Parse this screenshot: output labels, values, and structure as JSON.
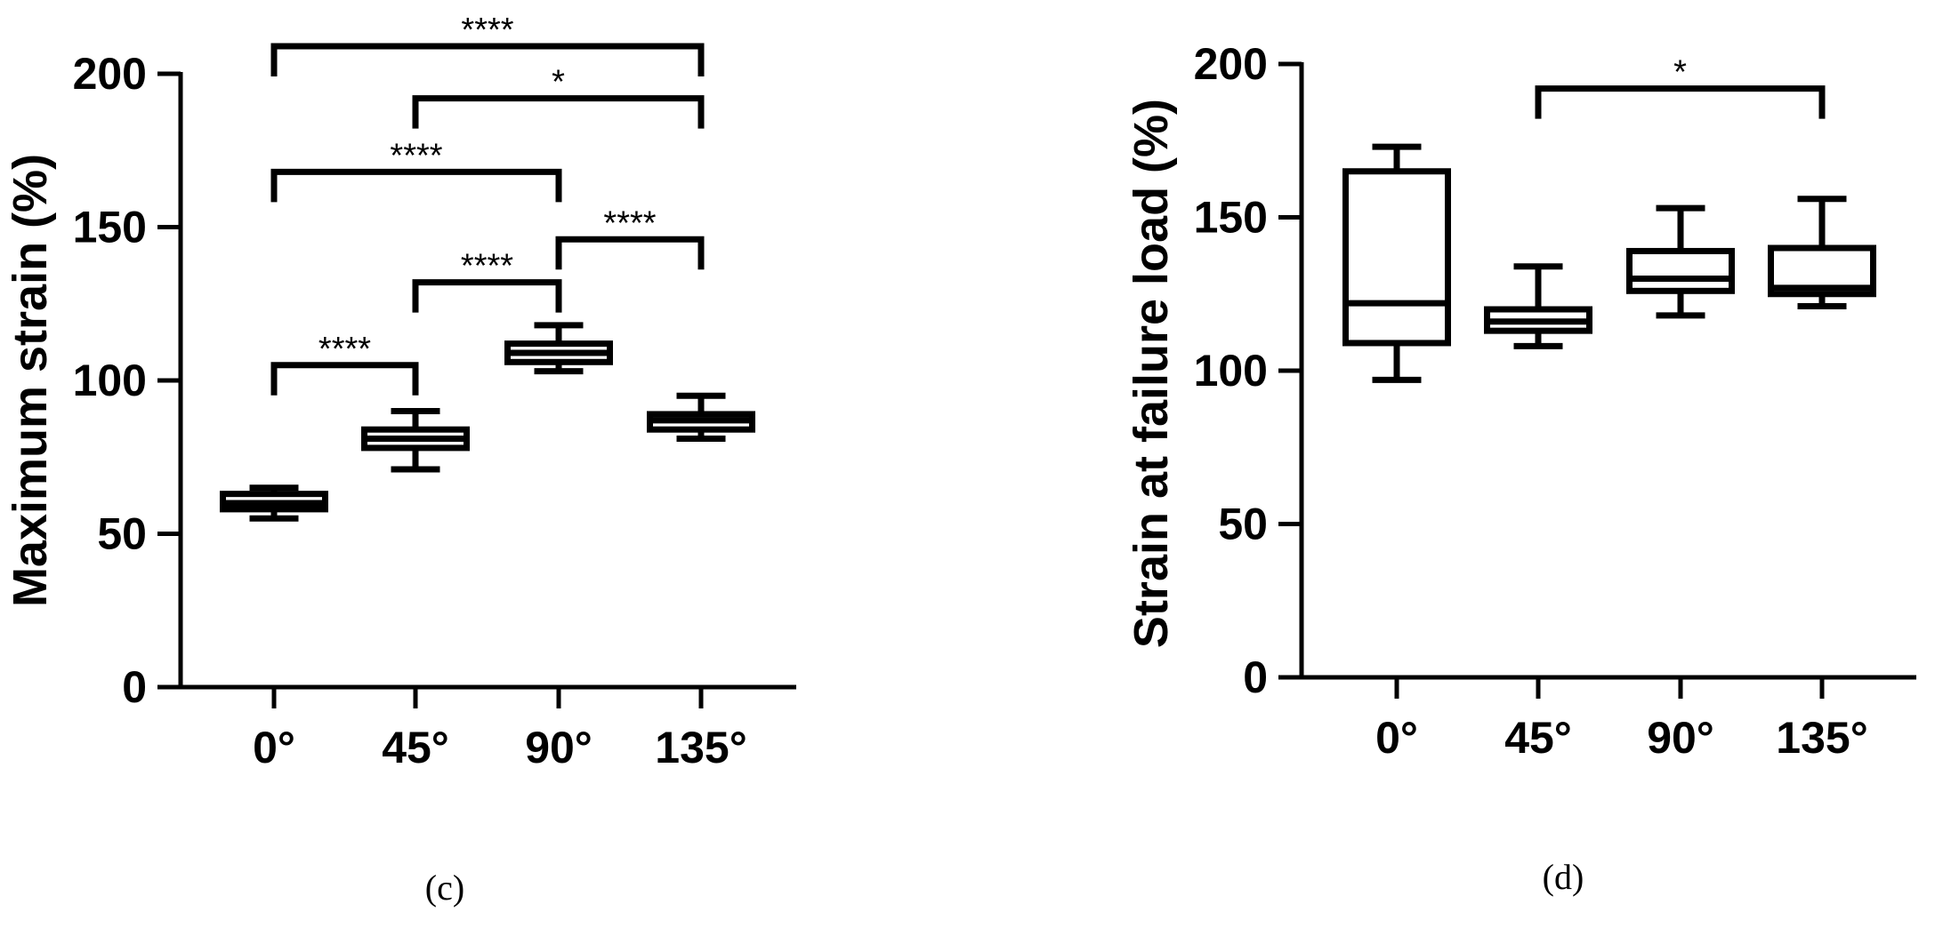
{
  "chart_data": [
    {
      "type": "box",
      "panel_label": "(c)",
      "ylabel": "Maximum strain (%)",
      "xlabel": "",
      "ylim": [
        0,
        200
      ],
      "yticks": [
        0,
        50,
        100,
        150,
        200
      ],
      "categories": [
        "0°",
        "45°",
        "90°",
        "135°"
      ],
      "boxes": [
        {
          "category": "0°",
          "min": 55,
          "q1": 58,
          "median": 60,
          "q3": 63,
          "max": 65
        },
        {
          "category": "45°",
          "min": 71,
          "q1": 78,
          "median": 81,
          "q3": 84,
          "max": 90
        },
        {
          "category": "90°",
          "min": 103,
          "q1": 106,
          "median": 109,
          "q3": 112,
          "max": 118
        },
        {
          "category": "135°",
          "min": 81,
          "q1": 84,
          "median": 87,
          "q3": 89,
          "max": 95
        }
      ],
      "significance": [
        {
          "from": 0,
          "to": 3,
          "label": "****",
          "y": 209
        },
        {
          "from": 1,
          "to": 3,
          "label": "*",
          "y": 192
        },
        {
          "from": 0,
          "to": 2,
          "label": "****",
          "y": 168
        },
        {
          "from": 2,
          "to": 3,
          "label": "****",
          "y": 146
        },
        {
          "from": 1,
          "to": 2,
          "label": "****",
          "y": 132
        },
        {
          "from": 0,
          "to": 1,
          "label": "****",
          "y": 105
        }
      ]
    },
    {
      "type": "box",
      "panel_label": "(d)",
      "ylabel": "Strain at failure load (%)",
      "xlabel": "",
      "ylim": [
        0,
        200
      ],
      "yticks": [
        0,
        50,
        100,
        150,
        200
      ],
      "categories": [
        "0°",
        "45°",
        "90°",
        "135°"
      ],
      "boxes": [
        {
          "category": "0°",
          "min": 97,
          "q1": 109,
          "median": 122,
          "q3": 165,
          "max": 173
        },
        {
          "category": "45°",
          "min": 108,
          "q1": 113,
          "median": 116,
          "q3": 120,
          "max": 134
        },
        {
          "category": "90°",
          "min": 118,
          "q1": 126,
          "median": 130,
          "q3": 139,
          "max": 153
        },
        {
          "category": "135°",
          "min": 121,
          "q1": 125,
          "median": 127,
          "q3": 140,
          "max": 156
        }
      ],
      "significance": [
        {
          "from": 1,
          "to": 3,
          "label": "*",
          "y": 192
        }
      ]
    }
  ]
}
